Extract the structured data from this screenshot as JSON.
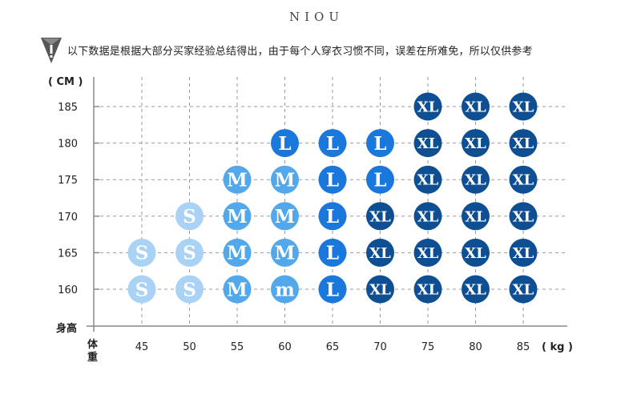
{
  "brand": "NIOU",
  "notice": {
    "icon": "exclamation-warning-icon",
    "text": "以下数据是根据大部分买家经验总结得出，由于每个人穿衣习惯不同，误差在所难免，所以仅供参考"
  },
  "chart_data": {
    "type": "scatter",
    "title": "",
    "ylabel": "( CM )",
    "ylabel_bottom": "身高",
    "xlabel": "( kg )",
    "xlabel_left": "体重",
    "x_ticks": [
      "45",
      "50",
      "55",
      "60",
      "65",
      "70",
      "75",
      "80",
      "85"
    ],
    "y_ticks": [
      "185",
      "180",
      "175",
      "170",
      "165",
      "160"
    ],
    "grid": true,
    "size_colors": {
      "S": "#a9d2f4",
      "M": "#52a8ea",
      "L": "#1a78dd",
      "XL": "#0e4f93"
    },
    "points": [
      {
        "x": 75,
        "y": 185,
        "size": "XL"
      },
      {
        "x": 80,
        "y": 185,
        "size": "XL"
      },
      {
        "x": 85,
        "y": 185,
        "size": "XL"
      },
      {
        "x": 60,
        "y": 180,
        "size": "L"
      },
      {
        "x": 65,
        "y": 180,
        "size": "L"
      },
      {
        "x": 70,
        "y": 180,
        "size": "L"
      },
      {
        "x": 75,
        "y": 180,
        "size": "XL"
      },
      {
        "x": 80,
        "y": 180,
        "size": "XL"
      },
      {
        "x": 85,
        "y": 180,
        "size": "XL"
      },
      {
        "x": 55,
        "y": 175,
        "size": "M"
      },
      {
        "x": 60,
        "y": 175,
        "size": "M"
      },
      {
        "x": 65,
        "y": 175,
        "size": "L"
      },
      {
        "x": 70,
        "y": 175,
        "size": "L"
      },
      {
        "x": 75,
        "y": 175,
        "size": "XL"
      },
      {
        "x": 80,
        "y": 175,
        "size": "XL"
      },
      {
        "x": 85,
        "y": 175,
        "size": "XL"
      },
      {
        "x": 50,
        "y": 170,
        "size": "S"
      },
      {
        "x": 55,
        "y": 170,
        "size": "M"
      },
      {
        "x": 60,
        "y": 170,
        "size": "M"
      },
      {
        "x": 65,
        "y": 170,
        "size": "L"
      },
      {
        "x": 70,
        "y": 170,
        "size": "XL"
      },
      {
        "x": 75,
        "y": 170,
        "size": "XL"
      },
      {
        "x": 80,
        "y": 170,
        "size": "XL"
      },
      {
        "x": 85,
        "y": 170,
        "size": "XL"
      },
      {
        "x": 45,
        "y": 165,
        "size": "S"
      },
      {
        "x": 50,
        "y": 165,
        "size": "S"
      },
      {
        "x": 55,
        "y": 165,
        "size": "M"
      },
      {
        "x": 60,
        "y": 165,
        "size": "M"
      },
      {
        "x": 65,
        "y": 165,
        "size": "L"
      },
      {
        "x": 70,
        "y": 165,
        "size": "XL"
      },
      {
        "x": 75,
        "y": 165,
        "size": "XL"
      },
      {
        "x": 80,
        "y": 165,
        "size": "XL"
      },
      {
        "x": 85,
        "y": 165,
        "size": "XL"
      },
      {
        "x": 45,
        "y": 160,
        "size": "S"
      },
      {
        "x": 50,
        "y": 160,
        "size": "S"
      },
      {
        "x": 55,
        "y": 160,
        "size": "M"
      },
      {
        "x": 60,
        "y": 160,
        "size": "M",
        "label": "m"
      },
      {
        "x": 65,
        "y": 160,
        "size": "L"
      },
      {
        "x": 70,
        "y": 160,
        "size": "XL"
      },
      {
        "x": 75,
        "y": 160,
        "size": "XL"
      },
      {
        "x": 80,
        "y": 160,
        "size": "XL"
      },
      {
        "x": 85,
        "y": 160,
        "size": "XL"
      }
    ]
  }
}
